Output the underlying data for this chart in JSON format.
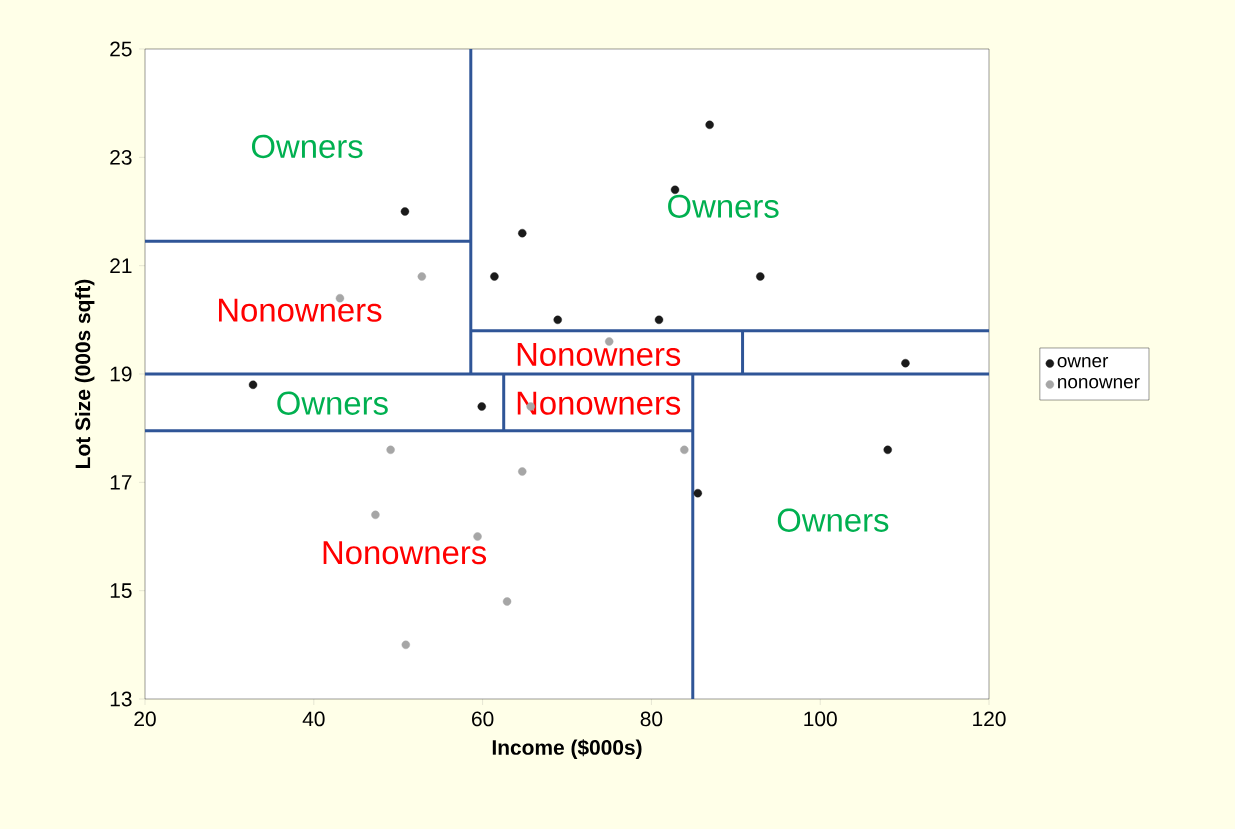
{
  "chart_data": {
    "type": "scatter",
    "xlabel": "Income ($000s)",
    "ylabel": "Lot Size (000s sqft)",
    "xlim": [
      20,
      120
    ],
    "ylim": [
      13,
      25
    ],
    "xticks": [
      20,
      40,
      60,
      80,
      100,
      120
    ],
    "yticks": [
      13,
      15,
      17,
      19,
      21,
      23,
      25
    ],
    "legend": "right",
    "series": [
      {
        "name": "owner",
        "color": "#1a1a1a",
        "marker": "circle",
        "x": [
          50.8,
          64.7,
          61.4,
          68.9,
          86.9,
          82.8,
          92.9,
          80.9,
          110.1,
          32.8,
          59.9,
          108.0,
          85.5
        ],
        "values": [
          22.0,
          21.6,
          20.8,
          20.0,
          23.6,
          22.4,
          20.8,
          20.0,
          19.2,
          18.8,
          18.4,
          17.6,
          16.8
        ]
      },
      {
        "name": "nonowner",
        "color": "#a6a6a6",
        "marker": "circle",
        "x": [
          52.8,
          43.1,
          75.0,
          49.1,
          64.7,
          47.3,
          59.4,
          62.9,
          50.9,
          65.7,
          83.9
        ],
        "values": [
          20.8,
          20.4,
          19.6,
          17.6,
          17.2,
          16.4,
          16.0,
          14.8,
          14.0,
          18.4,
          17.6
        ]
      },
      {
        "type": "line",
        "marker": "none",
        "color": "#2f5597",
        "x": [
          58.6,
          58.6
        ],
        "values": [
          25,
          19.0
        ]
      },
      {
        "type": "line",
        "marker": "none",
        "color": "#2f5597",
        "x": [
          20,
          58.6
        ],
        "values": [
          21.45,
          21.45
        ]
      },
      {
        "type": "line",
        "marker": "none",
        "color": "#2f5597",
        "x": [
          20,
          120
        ],
        "values": [
          19.0,
          19.0
        ]
      },
      {
        "type": "line",
        "marker": "none",
        "color": "#2f5597",
        "x": [
          58.6,
          120
        ],
        "values": [
          19.8,
          19.8
        ]
      },
      {
        "type": "line",
        "marker": "none",
        "color": "#2f5597",
        "x": [
          90.8,
          90.8
        ],
        "values": [
          19.0,
          19.8
        ]
      },
      {
        "type": "line",
        "marker": "none",
        "color": "#2f5597",
        "x": [
          20,
          84.9
        ],
        "values": [
          17.95,
          17.95
        ]
      },
      {
        "type": "line",
        "marker": "none",
        "color": "#2f5597",
        "x": [
          84.9,
          84.9
        ],
        "values": [
          13,
          19.0
        ]
      },
      {
        "type": "line",
        "marker": "none",
        "color": "#2f5597",
        "x": [
          62.5,
          62.5
        ],
        "values": [
          17.95,
          19.0
        ]
      }
    ],
    "annotations": [
      "Owners",
      "Owners",
      "Nonowners",
      "Nonowners",
      "Owners",
      "Nonowners",
      "Nonowners",
      "Owners"
    ]
  }
}
